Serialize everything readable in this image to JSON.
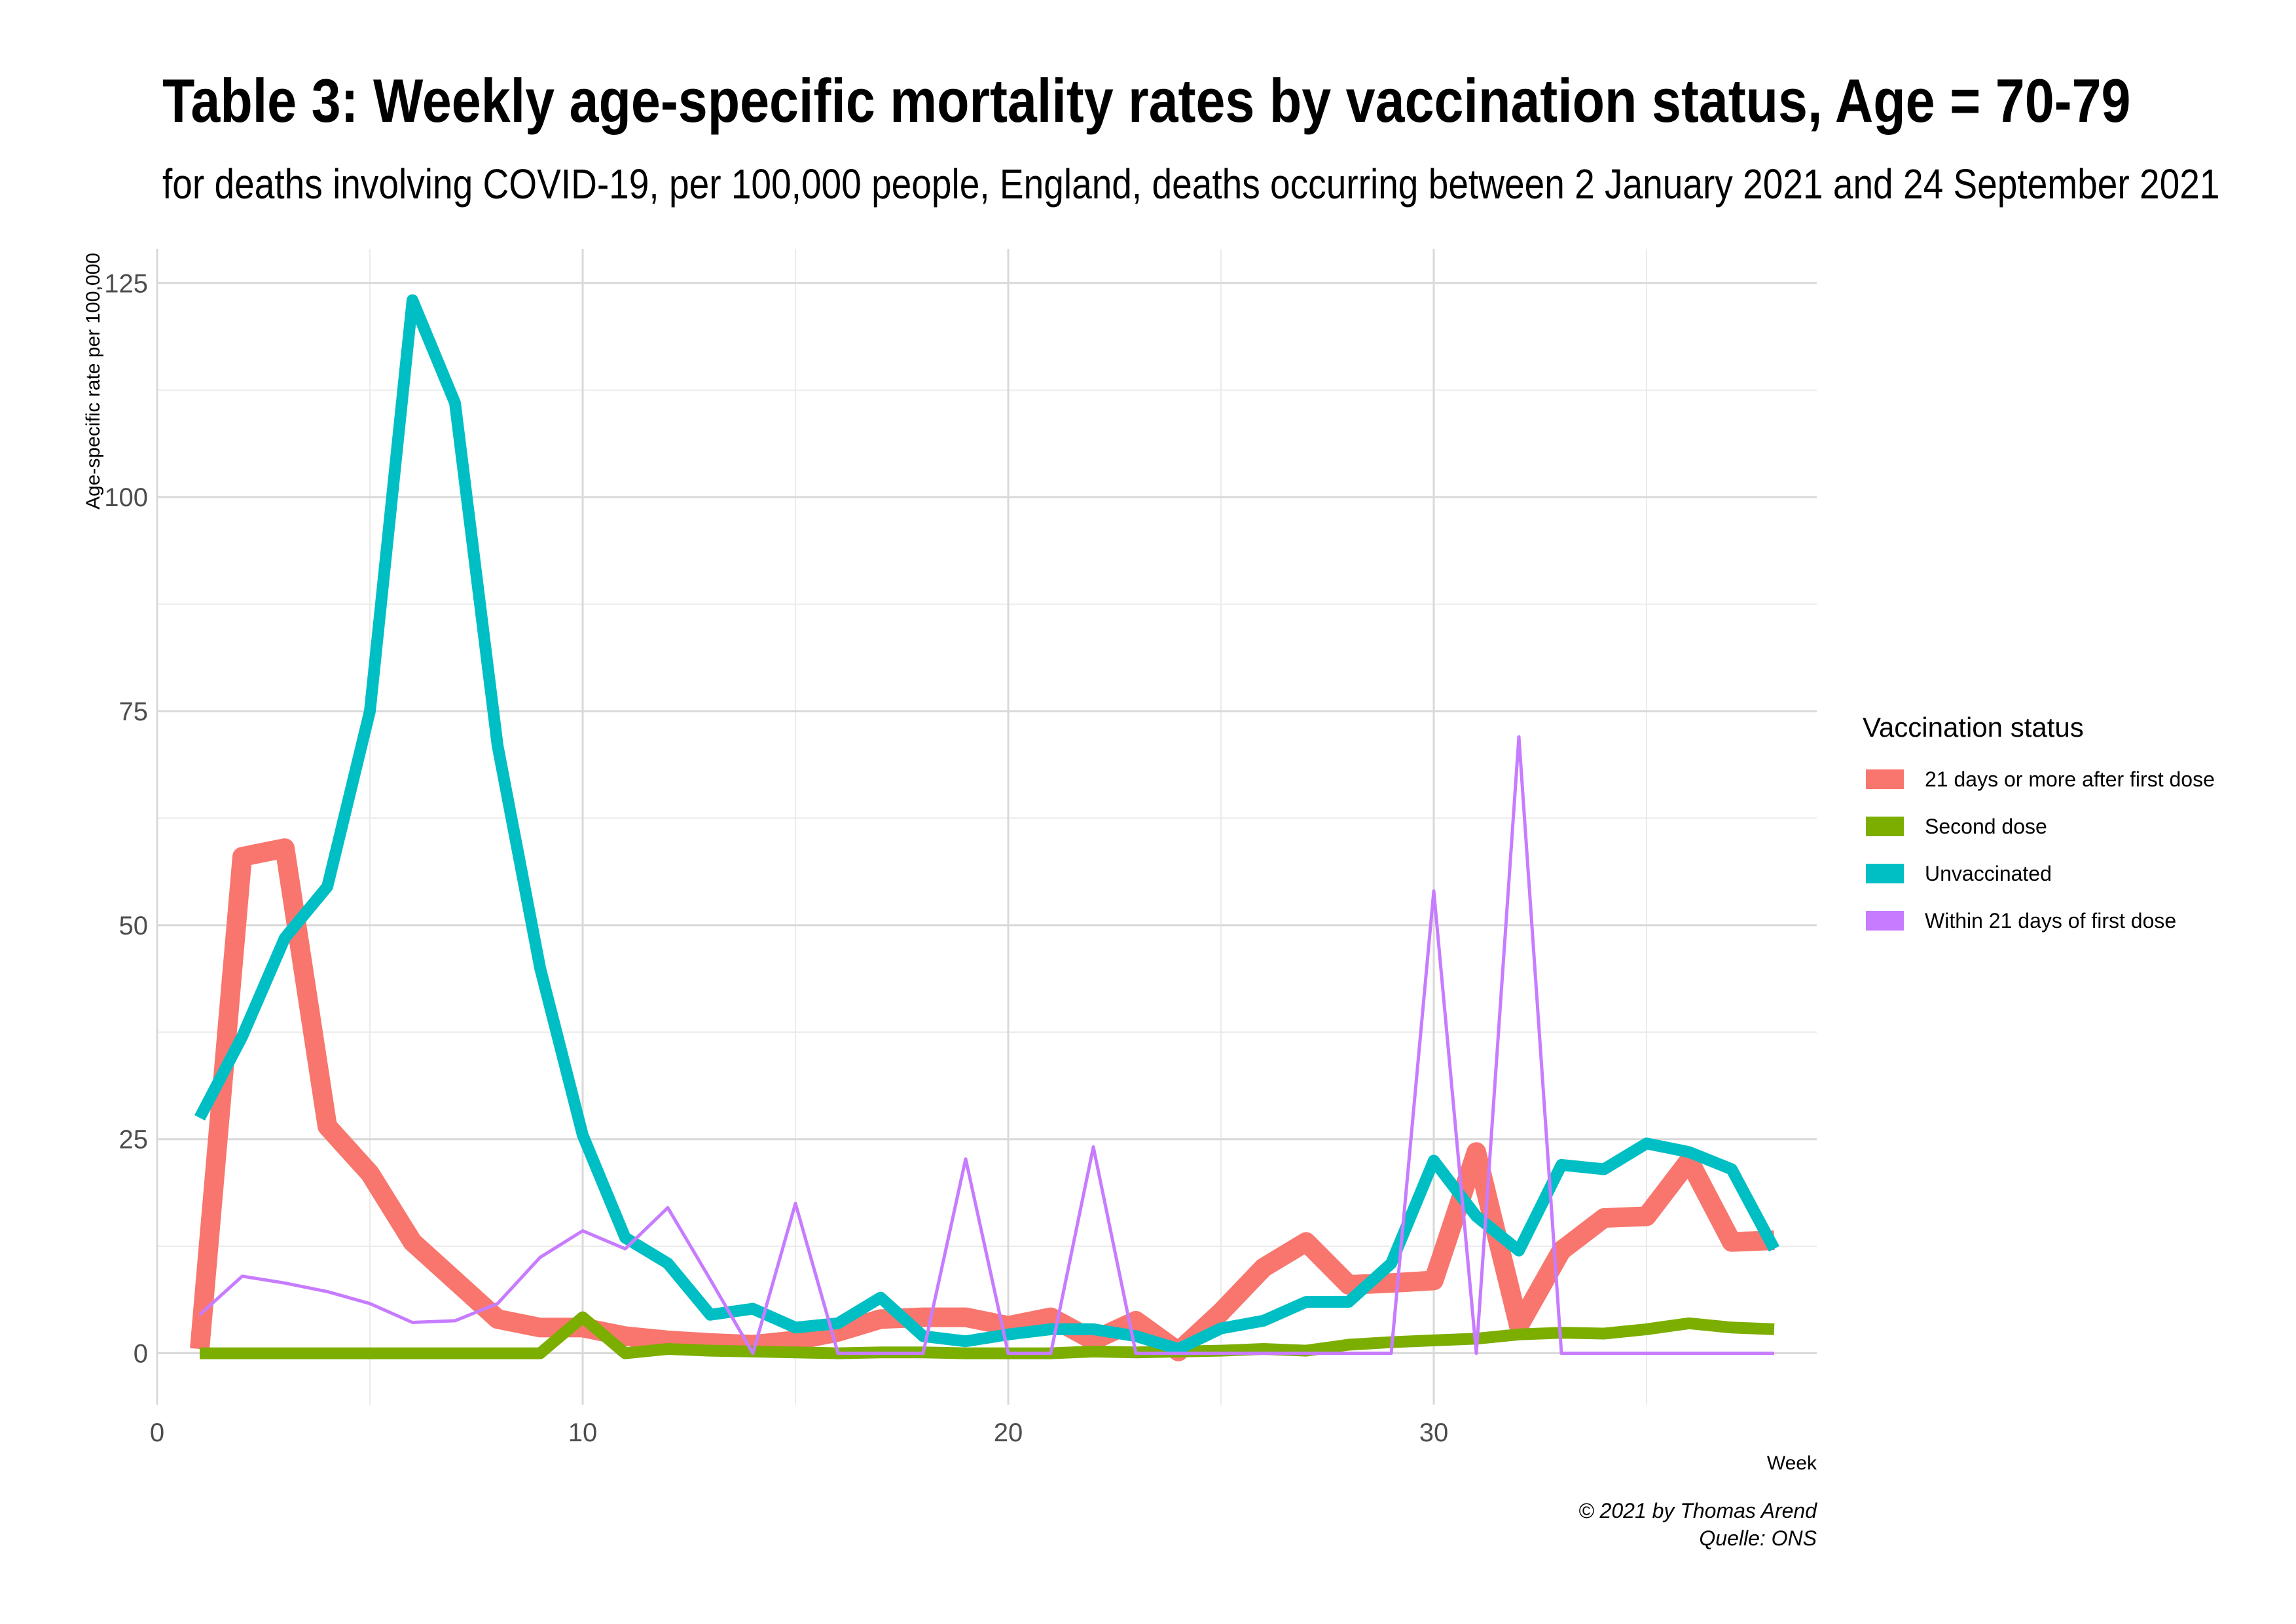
{
  "chart_data": {
    "type": "line",
    "title": "Table 3: Weekly age-specific mortality rates by vaccination status, Age = 70-79",
    "subtitle": "for deaths involving COVID-19, per 100,000 people, England, deaths occurring between 2 January 2021 and 24 September 2021",
    "xlabel": "Week",
    "ylabel": "Age-specific rate per 100,000",
    "xlim": [
      0,
      39
    ],
    "ylim": [
      -6,
      129
    ],
    "x_ticks": [
      0,
      10,
      20,
      30
    ],
    "y_ticks": [
      0,
      25,
      50,
      75,
      100,
      125
    ],
    "grid": true,
    "legend": {
      "title": "Vaccination status",
      "position": "right"
    },
    "caption": [
      "© 2021 by Thomas Arend",
      "Quelle: ONS"
    ],
    "x": [
      1,
      2,
      3,
      4,
      5,
      6,
      7,
      8,
      9,
      10,
      11,
      12,
      13,
      14,
      15,
      16,
      17,
      18,
      19,
      20,
      21,
      22,
      23,
      24,
      25,
      26,
      27,
      28,
      29,
      30,
      31,
      32,
      33,
      34,
      35,
      36,
      37,
      38
    ],
    "series": [
      {
        "name": "21 days or more after first dose",
        "color": "#F8766D",
        "width": 30,
        "values": [
          0.5,
          58,
          59,
          26.5,
          21,
          13,
          8.5,
          4,
          3,
          3,
          2,
          1.5,
          1.2,
          1,
          1.5,
          2.5,
          4,
          4.2,
          4.2,
          3.2,
          4.2,
          1.5,
          3.8,
          0.2,
          4.8,
          10,
          13,
          8,
          8.2,
          8.5,
          23.5,
          3.2,
          12,
          15.8,
          16,
          22.5,
          13,
          13.2
        ]
      },
      {
        "name": "Second dose",
        "color": "#7CAE00",
        "width": 18,
        "values": [
          0,
          0,
          0,
          0,
          0,
          0,
          0,
          0,
          0,
          4.2,
          0,
          0.5,
          0.3,
          0.2,
          0.1,
          0,
          0.1,
          0.1,
          0,
          0,
          0,
          0.2,
          0.1,
          0.2,
          0.3,
          0.5,
          0.3,
          1,
          1.3,
          1.5,
          1.7,
          2.2,
          2.4,
          2.3,
          2.8,
          3.5,
          3,
          2.8
        ]
      },
      {
        "name": "Unvaccinated",
        "color": "#00BFC4",
        "width": 18,
        "values": [
          27.5,
          37,
          48.5,
          54.5,
          75,
          123,
          111,
          71,
          45,
          25.5,
          13.5,
          10.5,
          4.5,
          5.2,
          3,
          3.5,
          6.5,
          2,
          1.4,
          2.2,
          2.8,
          2.8,
          2,
          0.5,
          2.9,
          3.8,
          6,
          6,
          10.5,
          22.5,
          16,
          12,
          22,
          21.5,
          24.5,
          23.5,
          21.5,
          12.2
        ]
      },
      {
        "name": "Within 21 days of first dose",
        "color": "#C77CFF",
        "width": 5,
        "values": [
          4.5,
          9,
          8.2,
          7.2,
          5.8,
          3.6,
          3.8,
          5.8,
          11.2,
          14.3,
          12.2,
          17,
          8.6,
          0,
          17.5,
          0,
          0,
          0,
          22.7,
          0,
          0,
          24.1,
          0,
          0,
          0,
          0,
          0,
          0,
          0,
          54,
          0,
          72,
          0,
          0,
          0,
          0,
          0,
          0
        ]
      }
    ]
  }
}
